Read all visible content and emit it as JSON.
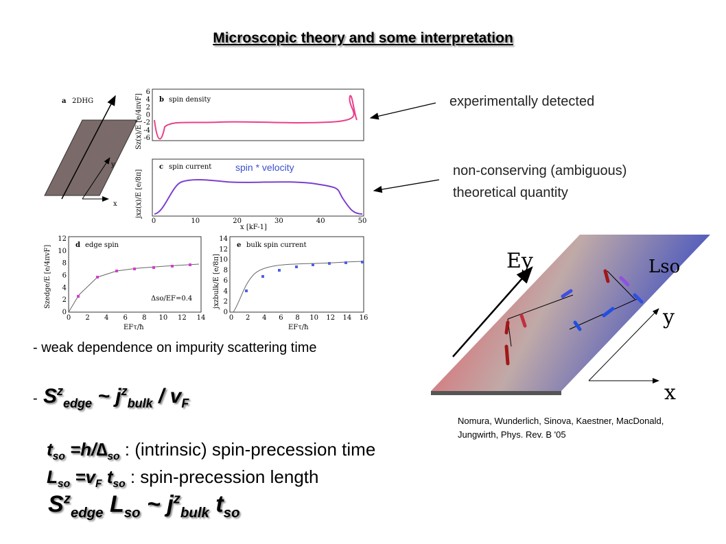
{
  "title": "Microscopic theory and some interpretation",
  "annotations": {
    "experimental": "experimentally detected",
    "theory_1": "non-conserving (ambiguous)",
    "theory_2": "theoretical quantity",
    "spin_velocity": "spin * velocity"
  },
  "figure": {
    "a": {
      "label": "a",
      "name": "2DHG",
      "y": "y",
      "x": "x"
    },
    "b": {
      "label": "b",
      "name": "spin density",
      "ylabel": "Sz(x)/E [e/4πvF]",
      "yticks": [
        "6",
        "4",
        "2",
        "0",
        "-2",
        "-4",
        "-6"
      ]
    },
    "c": {
      "label": "c",
      "name": "spin current",
      "ylabel": "jxz(x)/E [e/8π]",
      "xlabel": "x [kF-1]",
      "xticks": [
        "0",
        "10",
        "20",
        "30",
        "40",
        "50"
      ]
    },
    "d": {
      "label": "d",
      "name": "edge spin",
      "ylabel": "Szedge/E [e/4πvF]",
      "xlabel": "EFτ/ħ",
      "note": "Δso/EF=0.4",
      "yticks": [
        "12",
        "10",
        "8",
        "6",
        "4",
        "2",
        "0"
      ],
      "xticks": [
        "0",
        "2",
        "4",
        "6",
        "8",
        "10",
        "12",
        "14"
      ]
    },
    "e": {
      "label": "e",
      "name": "bulk spin current",
      "ylabel": "jxzbulk/E [e/8π]",
      "xlabel": "EFτ/ħ",
      "yticks": [
        "14",
        "12",
        "10",
        "8",
        "6",
        "4",
        "2",
        "0"
      ],
      "xticks": [
        "0",
        "2",
        "4",
        "6",
        "8",
        "10",
        "12",
        "14",
        "16"
      ]
    },
    "right": {
      "ey": "Ey",
      "lso": "Lso",
      "y": "y",
      "x": "x"
    }
  },
  "bullet": "- weak dependence on impurity scattering time",
  "dash": "-",
  "formula_1": [
    "S",
    "z",
    "edge",
    "~ j",
    "z",
    "bulk",
    "/ v",
    "F"
  ],
  "formula_2": {
    "parts": [
      "t",
      "so",
      "=h/∆",
      "so"
    ],
    "text": ": (intrinsic) spin-precession time"
  },
  "formula_3": {
    "parts": [
      "L",
      "so",
      "=v",
      "F",
      "t",
      "so"
    ],
    "text": ": spin-precession length"
  },
  "formula_4": [
    "S",
    "z",
    "edge",
    "L",
    "so",
    "~ j",
    "z",
    "bulk",
    "t",
    "so"
  ],
  "citation": [
    "Nomura, Wunderlich, Sinova, Kaestner, MacDonald,",
    "Jungwirth, Phys. Rev. B '05"
  ]
}
